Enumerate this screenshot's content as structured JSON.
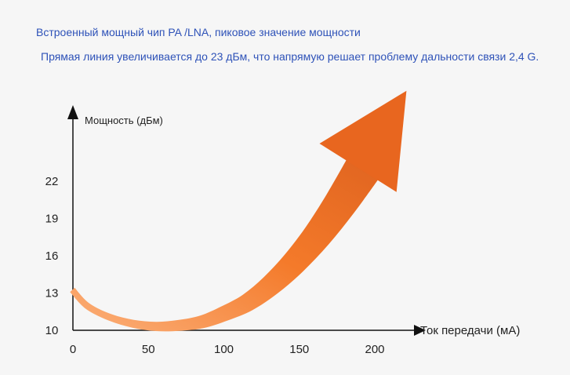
{
  "header": {
    "line1": "Встроенный мощный чип PA /LNA, пиковое значение мощности",
    "line2": "Прямая линия увеличивается до 23 дБм, что напрямую решает проблему дальности связи 2,4 G."
  },
  "colors": {
    "headline": "#2e52b8",
    "axis": "#111111",
    "arrow_light": "#fbb07a",
    "arrow_mid": "#f47a2a",
    "arrow_dark": "#e06420"
  },
  "chart_data": {
    "type": "line",
    "title": "",
    "ylabel": "Мощность (дБм)",
    "xlabel": "Ток передачи (мА)",
    "xlim": [
      0,
      220
    ],
    "ylim": [
      10,
      27
    ],
    "x_ticks": [
      0,
      50,
      100,
      150,
      200
    ],
    "y_ticks": [
      10,
      13,
      16,
      19,
      22
    ],
    "grid": false,
    "series": [
      {
        "x": [
          0,
          10,
          25,
          40,
          55,
          70,
          85,
          100,
          115,
          130,
          145,
          160,
          175,
          190
        ],
        "y": [
          13.3,
          12.0,
          11.1,
          10.6,
          10.4,
          10.5,
          10.8,
          11.5,
          12.4,
          13.8,
          15.6,
          17.8,
          20.4,
          23.3
        ]
      }
    ]
  }
}
